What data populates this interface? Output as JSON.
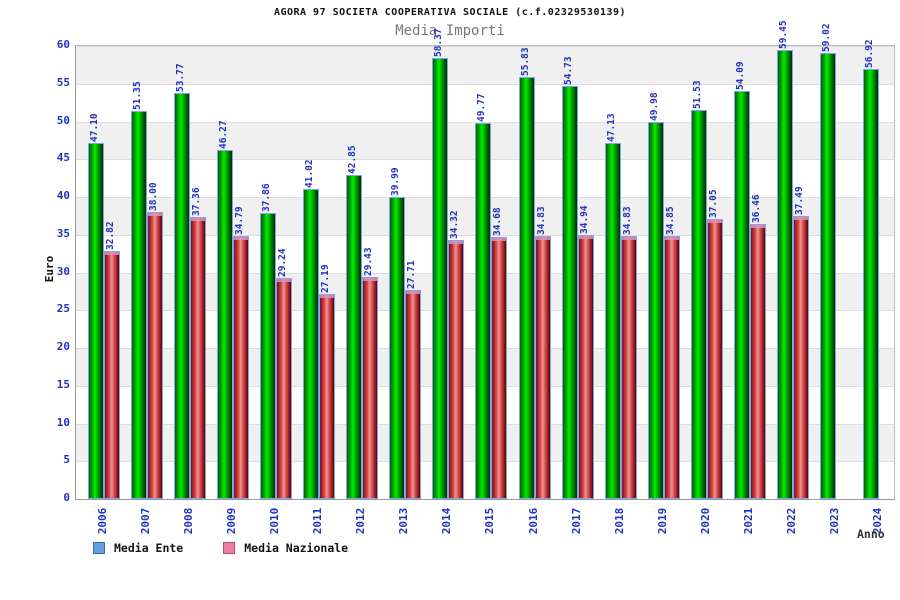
{
  "title": "AGORA 97 SOCIETA COOPERATIVA SOCIALE (c.f.02329530139)",
  "subtitle": "Media Importi",
  "y_axis": {
    "label": "Euro",
    "ticks": [
      0,
      5,
      10,
      15,
      20,
      25,
      30,
      35,
      40,
      45,
      50,
      55,
      60
    ]
  },
  "x_axis": {
    "label": "Anno"
  },
  "legend": {
    "items": [
      {
        "label": "Media Ente",
        "swatch_color": "#66a0dc",
        "swatch_border": "#3a6ea8"
      },
      {
        "label": "Media Nazionale",
        "swatch_color": "#ed7fa4",
        "swatch_border": "#b14c72"
      }
    ]
  },
  "colors": {
    "bar_green": "#00c300",
    "bar_red": "#d95c5c",
    "bar_border": "#7aa8f0",
    "axis_text": "#2233bb",
    "band_gray": "#f0f0f0"
  },
  "chart_data": {
    "type": "bar",
    "title": "AGORA 97 SOCIETA COOPERATIVA SOCIALE (c.f.02329530139)",
    "subtitle": "Media Importi",
    "xlabel": "Anno",
    "ylabel": "Euro",
    "ylim": [
      0,
      60
    ],
    "grid": "horizontal-bands-every-5",
    "legend_position": "bottom-left",
    "categories": [
      "2006",
      "2007",
      "2008",
      "2009",
      "2010",
      "2011",
      "2012",
      "2013",
      "2014",
      "2015",
      "2016",
      "2017",
      "2018",
      "2019",
      "2020",
      "2021",
      "2022",
      "2023",
      "2024"
    ],
    "series": [
      {
        "name": "Media Ente",
        "values": [
          47.1,
          51.35,
          53.77,
          46.27,
          37.86,
          41.02,
          42.85,
          39.99,
          58.37,
          49.77,
          55.83,
          54.73,
          47.13,
          49.98,
          51.53,
          54.09,
          59.45,
          59.02,
          56.92
        ]
      },
      {
        "name": "Media Nazionale",
        "values": [
          32.82,
          38.0,
          37.36,
          34.79,
          29.24,
          27.19,
          29.43,
          27.71,
          34.32,
          34.68,
          34.83,
          34.94,
          34.83,
          34.85,
          37.05,
          36.46,
          37.49,
          null,
          null
        ]
      }
    ]
  }
}
